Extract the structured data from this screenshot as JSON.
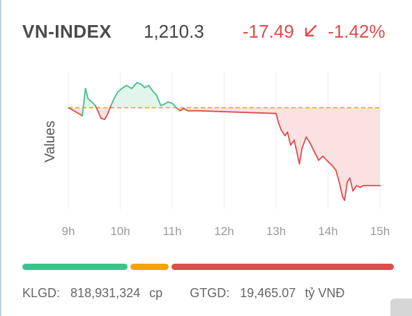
{
  "index": {
    "name": "VN-INDEX",
    "value": "1,210.3",
    "change": "-17.49",
    "change_pct": "-1.42%",
    "arrow": "down-left-arrow"
  },
  "colors": {
    "up": "#3fc28a",
    "down": "#e04b4b",
    "reference": "#f0a500",
    "up_fill": "#dff4e8",
    "down_fill": "#fbe0e0"
  },
  "chart_data": {
    "type": "line",
    "ylabel": "Values",
    "xlabel": "",
    "x_ticks": [
      "9h",
      "10h",
      "11h",
      "12h",
      "13h",
      "14h",
      "15h"
    ],
    "reference": 1227.79,
    "ylim": [
      1205,
      1236
    ],
    "grid": "vertical",
    "series": [
      {
        "x": [
          9.0,
          9.27,
          9.33,
          9.38,
          9.45,
          9.52,
          9.58,
          9.63,
          9.7,
          9.76,
          9.82,
          9.88,
          9.95,
          10.03,
          10.12,
          10.22,
          10.32,
          10.4,
          10.47,
          10.55,
          10.62,
          10.7,
          10.78,
          10.85,
          10.92,
          11.0,
          11.08,
          11.15,
          11.22,
          11.3,
          11.4,
          11.5,
          13.0,
          13.05,
          13.1,
          13.17,
          13.22,
          13.28,
          13.35,
          13.45,
          13.5,
          13.58,
          13.65,
          13.75,
          13.82,
          13.9,
          14.0,
          14.08,
          14.15,
          14.22,
          14.28,
          14.32,
          14.37,
          14.42,
          14.48,
          14.55,
          14.62,
          14.68,
          14.75,
          15.0
        ],
        "y": [
          1227.8,
          1226.0,
          1232.1,
          1229.8,
          1229.1,
          1228.3,
          1226.8,
          1225.4,
          1225.2,
          1226.4,
          1228.3,
          1229.8,
          1231.3,
          1232.1,
          1232.8,
          1232.1,
          1233.4,
          1233.1,
          1232.3,
          1232.8,
          1231.6,
          1230.6,
          1228.3,
          1228.6,
          1229.1,
          1228.8,
          1227.8,
          1227.1,
          1227.6,
          1227.1,
          1227.1,
          1227.1,
          1226.5,
          1224.3,
          1222.8,
          1221.5,
          1222.3,
          1219.4,
          1220.5,
          1215.2,
          1218.7,
          1221.2,
          1220.0,
          1217.6,
          1216.0,
          1216.9,
          1215.7,
          1214.8,
          1213.8,
          1210.9,
          1207.8,
          1207.0,
          1211.1,
          1212.0,
          1209.1,
          1210.3,
          1209.9,
          1210.3,
          1210.3,
          1210.3
        ]
      }
    ]
  },
  "market_breadth": {
    "advancers": 115,
    "unchanged": 42,
    "decliners": 244
  },
  "footer": {
    "volume_label": "KLGD:",
    "volume_value": "818,931,324",
    "volume_unit": "cp",
    "value_label": "GTGD:",
    "value_value": "19,465.07",
    "value_unit": "tỷ VNĐ"
  }
}
